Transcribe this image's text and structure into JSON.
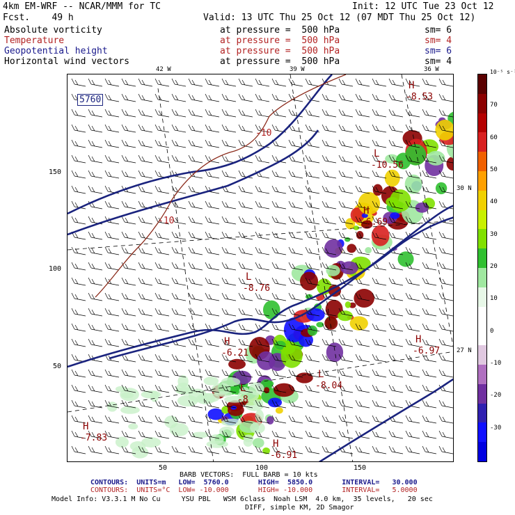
{
  "header": {
    "model": "4km EM-WRF -- NCAR/MMM for TC",
    "init": "Init: 12 UTC Tue 23 Oct 12",
    "fcst": "Fcst.    49 h",
    "valid": "Valid: 13 UTC Thu 25 Oct 12 (07 MDT Thu 25 Oct 12)"
  },
  "fields": [
    {
      "name": "Absolute vorticity",
      "level": "at pressure =  500 hPa",
      "sm": "sm= 6",
      "color": "#000000"
    },
    {
      "name": "Temperature",
      "level": "at pressure =  500 hPa",
      "sm": "sm= 4",
      "color": "#b22222"
    },
    {
      "name": "Geopotential height",
      "level": "at pressure =  500 hPa",
      "sm": "sm= 6",
      "color": "#1a1a8c"
    },
    {
      "name": "Horizontal wind vectors",
      "level": "at pressure =  500 hPa",
      "sm": "sm= 4",
      "color": "#000000"
    }
  ],
  "map": {
    "lon_labels": [
      "42 W",
      "39 W",
      "36 W"
    ],
    "lat_labels_right": [
      "30 N",
      "27 N"
    ],
    "x_ticks": [
      "50",
      "100",
      "150"
    ],
    "y_ticks": [
      "150",
      "100",
      "50"
    ],
    "height_contour_label": "5760",
    "temp_labels": [
      "-10",
      "-10"
    ],
    "centers": [
      {
        "mark": "H",
        "value": "-8.53",
        "color": "#8b0000"
      },
      {
        "mark": "L",
        "value": "-10.56",
        "color": "#8b0000"
      },
      {
        "mark": "H",
        "value": "-6.69",
        "color": "#8b0000"
      },
      {
        "mark": "L",
        "value": "-8.76",
        "color": "#8b0000"
      },
      {
        "mark": "H",
        "value": "-6.21",
        "color": "#8b0000"
      },
      {
        "mark": "L",
        "value": "-8.04",
        "color": "#8b0000"
      },
      {
        "mark": "H",
        "value": "-6.97",
        "color": "#8b0000"
      },
      {
        "mark": "L",
        "value": "-8",
        "color": "#8b0000"
      },
      {
        "mark": "H",
        "value": "-7.83",
        "color": "#8b0000"
      },
      {
        "mark": "H",
        "value": "-6.91",
        "color": "#8b0000"
      }
    ]
  },
  "colorbar": {
    "unit": "10⁻⁵ s⁻¹",
    "labels": [
      "70",
      "60",
      "50",
      "40",
      "30",
      "20",
      "10",
      "0",
      "-10",
      "-20",
      "-30"
    ],
    "colors": [
      "#5a0000",
      "#8b0000",
      "#b40000",
      "#d82020",
      "#f06000",
      "#ffa000",
      "#f0d000",
      "#c8f000",
      "#80e000",
      "#30c030",
      "#a0e8a0",
      "#e8f8e8",
      "#ffffff",
      "#ffffff",
      "#e0c8e0",
      "#b070c0",
      "#7030a0",
      "#3020b0",
      "#1010ff",
      "#0000e0"
    ]
  },
  "footer": {
    "barb": "BARB VECTORS:  FULL BARB = 10 kts",
    "contours1": "CONTOURS:  UNITS=m   LOW=  5760.0       HIGH=  5850.0       INTERVAL=   30.000",
    "contours2": "CONTOURS:  UNITS=°C  LOW= -10.000       HIGH= -10.000       INTERVAL=   5.0000",
    "model_info": "Model Info: V3.3.1 M No Cu     YSU PBL   WSM 6class  Noah LSM  4.0 km,  35 levels,   20 sec",
    "model_info2": "DIFF, simple KM, 2D Smagor"
  }
}
